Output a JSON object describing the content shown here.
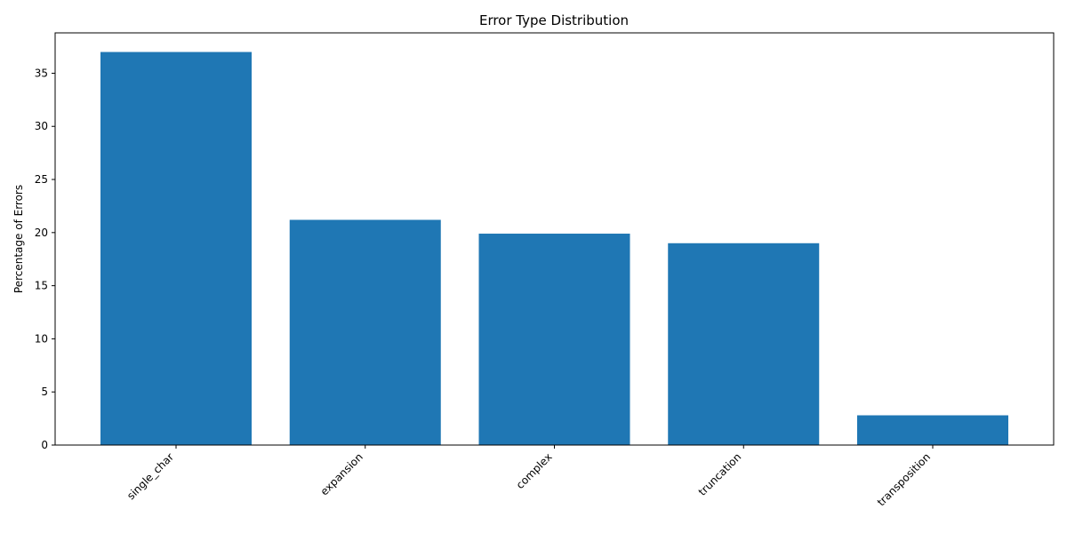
{
  "chart_data": {
    "type": "bar",
    "title": "Error Type Distribution",
    "xlabel": "",
    "ylabel": "Percentage of Errors",
    "categories": [
      "single_char",
      "expansion",
      "complex",
      "truncation",
      "transposition"
    ],
    "values": [
      37.0,
      21.2,
      19.9,
      19.0,
      2.8
    ],
    "ylim": [
      0,
      38.8
    ],
    "yticks": [
      0,
      5,
      10,
      15,
      20,
      25,
      30,
      35
    ],
    "bar_color": "#1f77b4",
    "grid": false,
    "legend": "none",
    "xtick_rotation": -45
  }
}
